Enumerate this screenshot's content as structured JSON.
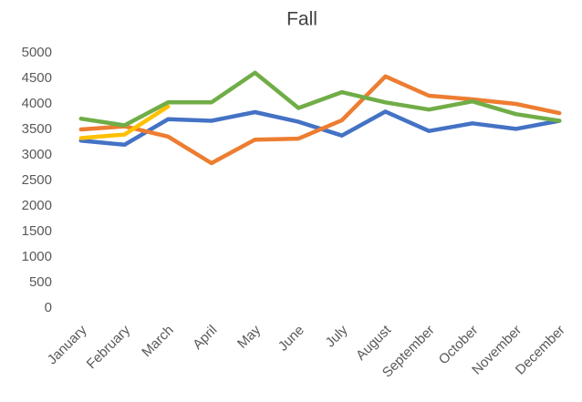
{
  "chart_data": {
    "type": "line",
    "title": "Fall",
    "categories": [
      "January",
      "February",
      "March",
      "April",
      "May",
      "June",
      "July",
      "August",
      "September",
      "October",
      "November",
      "December"
    ],
    "series": [
      {
        "color": "#4472c4",
        "values": [
          3280,
          3200,
          3700,
          3670,
          3840,
          3650,
          3380,
          3850,
          3470,
          3620,
          3510,
          3670
        ]
      },
      {
        "color": "#ed7d31",
        "values": [
          3500,
          3560,
          3360,
          2840,
          3300,
          3320,
          3680,
          4540,
          4160,
          4090,
          4000,
          3820
        ]
      },
      {
        "color": "#ffc000",
        "values": [
          3330,
          3400,
          3950,
          null,
          null,
          null,
          null,
          null,
          null,
          null,
          null,
          null
        ]
      },
      {
        "color": "#70ad47",
        "values": [
          3710,
          3580,
          4030,
          4030,
          4610,
          3920,
          4230,
          4030,
          3890,
          4050,
          3800,
          3670
        ]
      }
    ],
    "ylim": [
      0,
      5000
    ],
    "yticks": [
      0,
      500,
      1000,
      1500,
      2000,
      2500,
      3000,
      3500,
      4000,
      4500,
      5000
    ],
    "grid": false
  }
}
